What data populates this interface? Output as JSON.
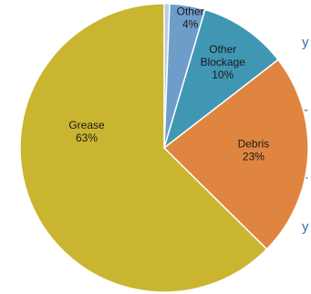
{
  "chart_data": {
    "type": "pie",
    "slices": [
      {
        "label_lines": [
          "Other",
          "4%"
        ],
        "value": 4,
        "color": "#6f9dc9"
      },
      {
        "label_lines": [
          "Other",
          "Blockage",
          "10%"
        ],
        "value": 10,
        "color": "#3f97b3"
      },
      {
        "label_lines": [
          "Debris",
          "23%"
        ],
        "value": 23,
        "color": "#df8540"
      },
      {
        "label_lines": [
          "Grease",
          "63%"
        ],
        "value": 63,
        "color": "#cab530"
      }
    ],
    "side_fragments": [
      "y",
      "-",
      "-",
      "y"
    ]
  }
}
